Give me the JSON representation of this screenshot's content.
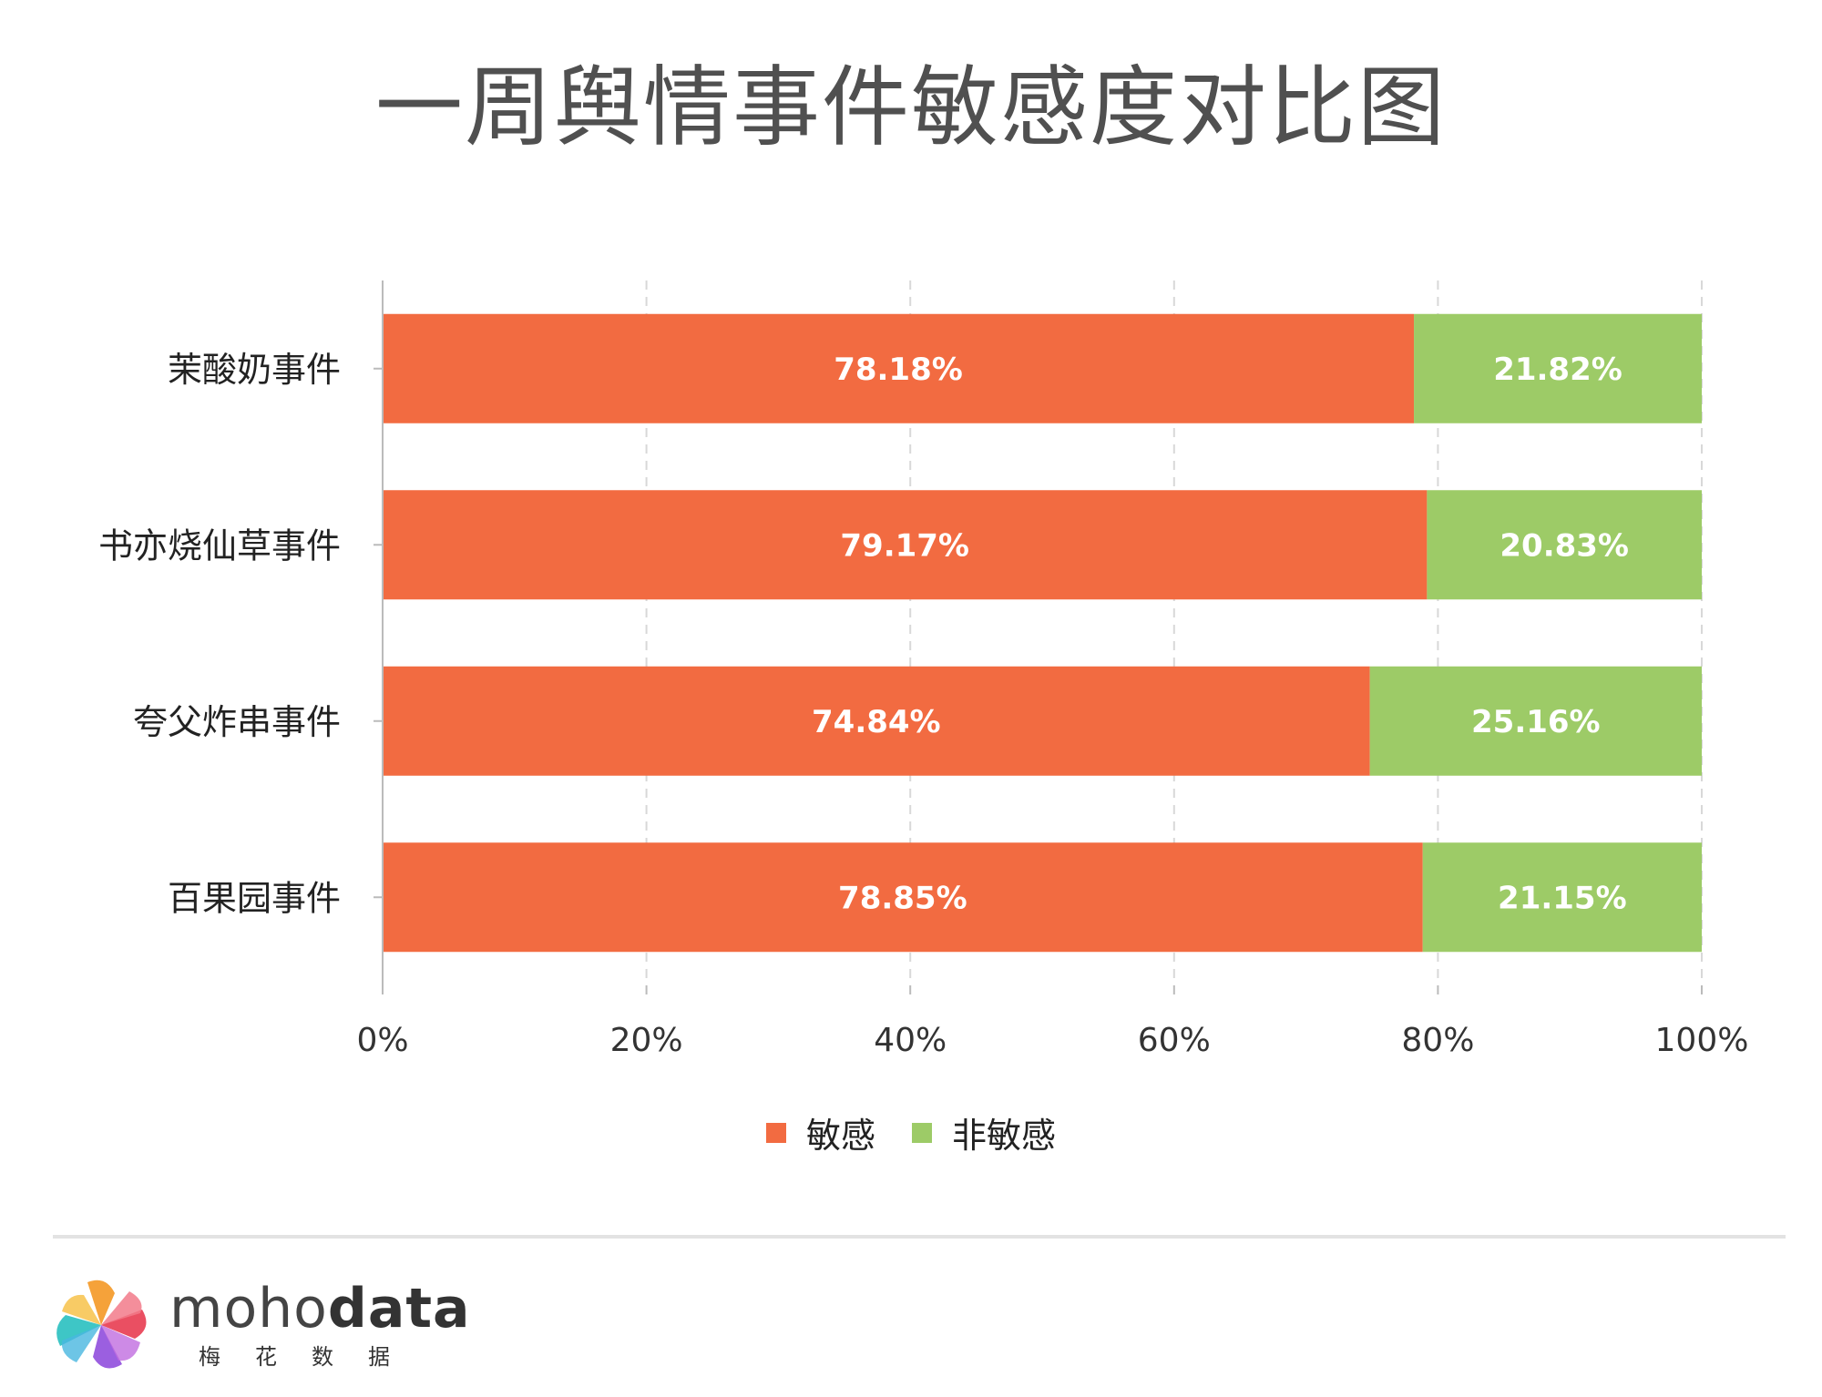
{
  "chart_data": {
    "type": "bar",
    "orientation": "horizontal",
    "stacked": true,
    "percent": true,
    "title": "一周舆情事件敏感度对比图",
    "categories": [
      "茉酸奶事件",
      "书亦烧仙草事件",
      "夸父炸串事件",
      "百果园事件"
    ],
    "series": [
      {
        "name": "敏感",
        "color": "#f26b41",
        "values": [
          78.18,
          79.17,
          74.84,
          78.85
        ],
        "labels": [
          "78.18%",
          "79.17%",
          "74.84%",
          "78.85%"
        ]
      },
      {
        "name": "非敏感",
        "color": "#9dcb67",
        "values": [
          21.82,
          20.83,
          25.16,
          21.15
        ],
        "labels": [
          "21.82%",
          "20.83%",
          "25.16%",
          "21.15%"
        ]
      }
    ],
    "x_ticks": [
      "0%",
      "20%",
      "40%",
      "60%",
      "80%",
      "100%"
    ],
    "xlim": [
      0,
      100
    ],
    "grid": "vertical-dashed",
    "legend": "bottom-center"
  },
  "brand": {
    "name_light": "moho",
    "name_bold": "data",
    "subtitle": "梅花数据"
  }
}
